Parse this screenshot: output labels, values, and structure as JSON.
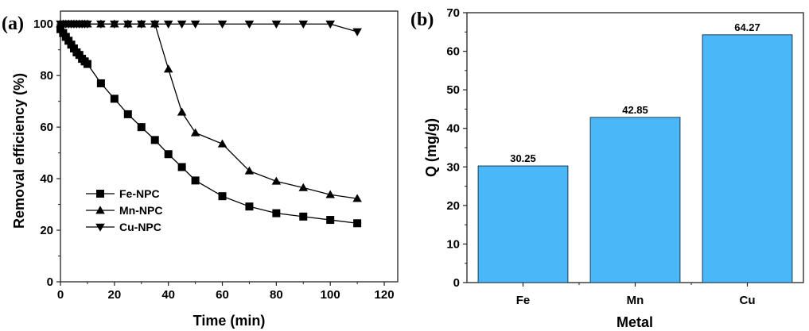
{
  "chart_data": [
    {
      "panel_label": "(a)",
      "type": "line",
      "title": "",
      "xlabel": "Time (min)",
      "ylabel": "Removal efficiency (%)",
      "xlim": [
        0,
        125
      ],
      "ylim": [
        0,
        105
      ],
      "xticks": [
        0,
        20,
        40,
        60,
        80,
        100,
        120
      ],
      "yticks": [
        0,
        20,
        40,
        60,
        80,
        100
      ],
      "legend_position": "lower-left",
      "grid": false,
      "series": [
        {
          "name": "Fe-NPC",
          "marker": "square",
          "x": [
            0,
            1,
            2,
            3,
            4,
            5,
            6,
            7,
            8,
            9,
            10,
            15,
            20,
            25,
            30,
            35,
            40,
            45,
            50,
            60,
            70,
            80,
            90,
            100,
            110
          ],
          "y": [
            98,
            96.5,
            95,
            93.5,
            92,
            90.5,
            89,
            88,
            86.5,
            85.5,
            84.5,
            77,
            71,
            65,
            60,
            55,
            49.5,
            44.5,
            39.3,
            33.2,
            29.2,
            26.6,
            25.3,
            24,
            22.7
          ]
        },
        {
          "name": "Mn-NPC",
          "marker": "triangle-up",
          "x": [
            0,
            1,
            2,
            3,
            4,
            5,
            6,
            7,
            8,
            9,
            10,
            15,
            20,
            25,
            30,
            35,
            40,
            45,
            50,
            60,
            70,
            80,
            90,
            100,
            110
          ],
          "y": [
            100,
            100,
            100,
            100,
            100,
            100,
            100,
            100,
            100,
            100,
            100,
            100,
            100,
            100,
            100,
            100,
            82.5,
            65.8,
            57.8,
            53.5,
            43,
            39,
            36.5,
            33.8,
            32.3
          ]
        },
        {
          "name": "Cu-NPC",
          "marker": "triangle-down",
          "x": [
            0,
            1,
            2,
            3,
            4,
            5,
            6,
            7,
            8,
            9,
            10,
            15,
            20,
            25,
            30,
            35,
            40,
            45,
            50,
            60,
            70,
            80,
            90,
            100,
            110
          ],
          "y": [
            100,
            100,
            100,
            100,
            100,
            100,
            100,
            100,
            100,
            100,
            100,
            100,
            100,
            100,
            100,
            100,
            100,
            100,
            100,
            100,
            100,
            100,
            100,
            100,
            97
          ]
        }
      ]
    },
    {
      "panel_label": "(b)",
      "type": "bar",
      "title": "",
      "xlabel": "Metal",
      "ylabel": "Q (mg/g)",
      "ylim": [
        0,
        70
      ],
      "yticks": [
        0,
        10,
        20,
        30,
        40,
        50,
        60,
        70
      ],
      "categories": [
        "Fe",
        "Mn",
        "Cu"
      ],
      "values": [
        30.25,
        42.85,
        64.27
      ],
      "data_labels": [
        "30.25",
        "42.85",
        "64.27"
      ],
      "bar_color": "#4ab8f8",
      "grid": false
    }
  ]
}
